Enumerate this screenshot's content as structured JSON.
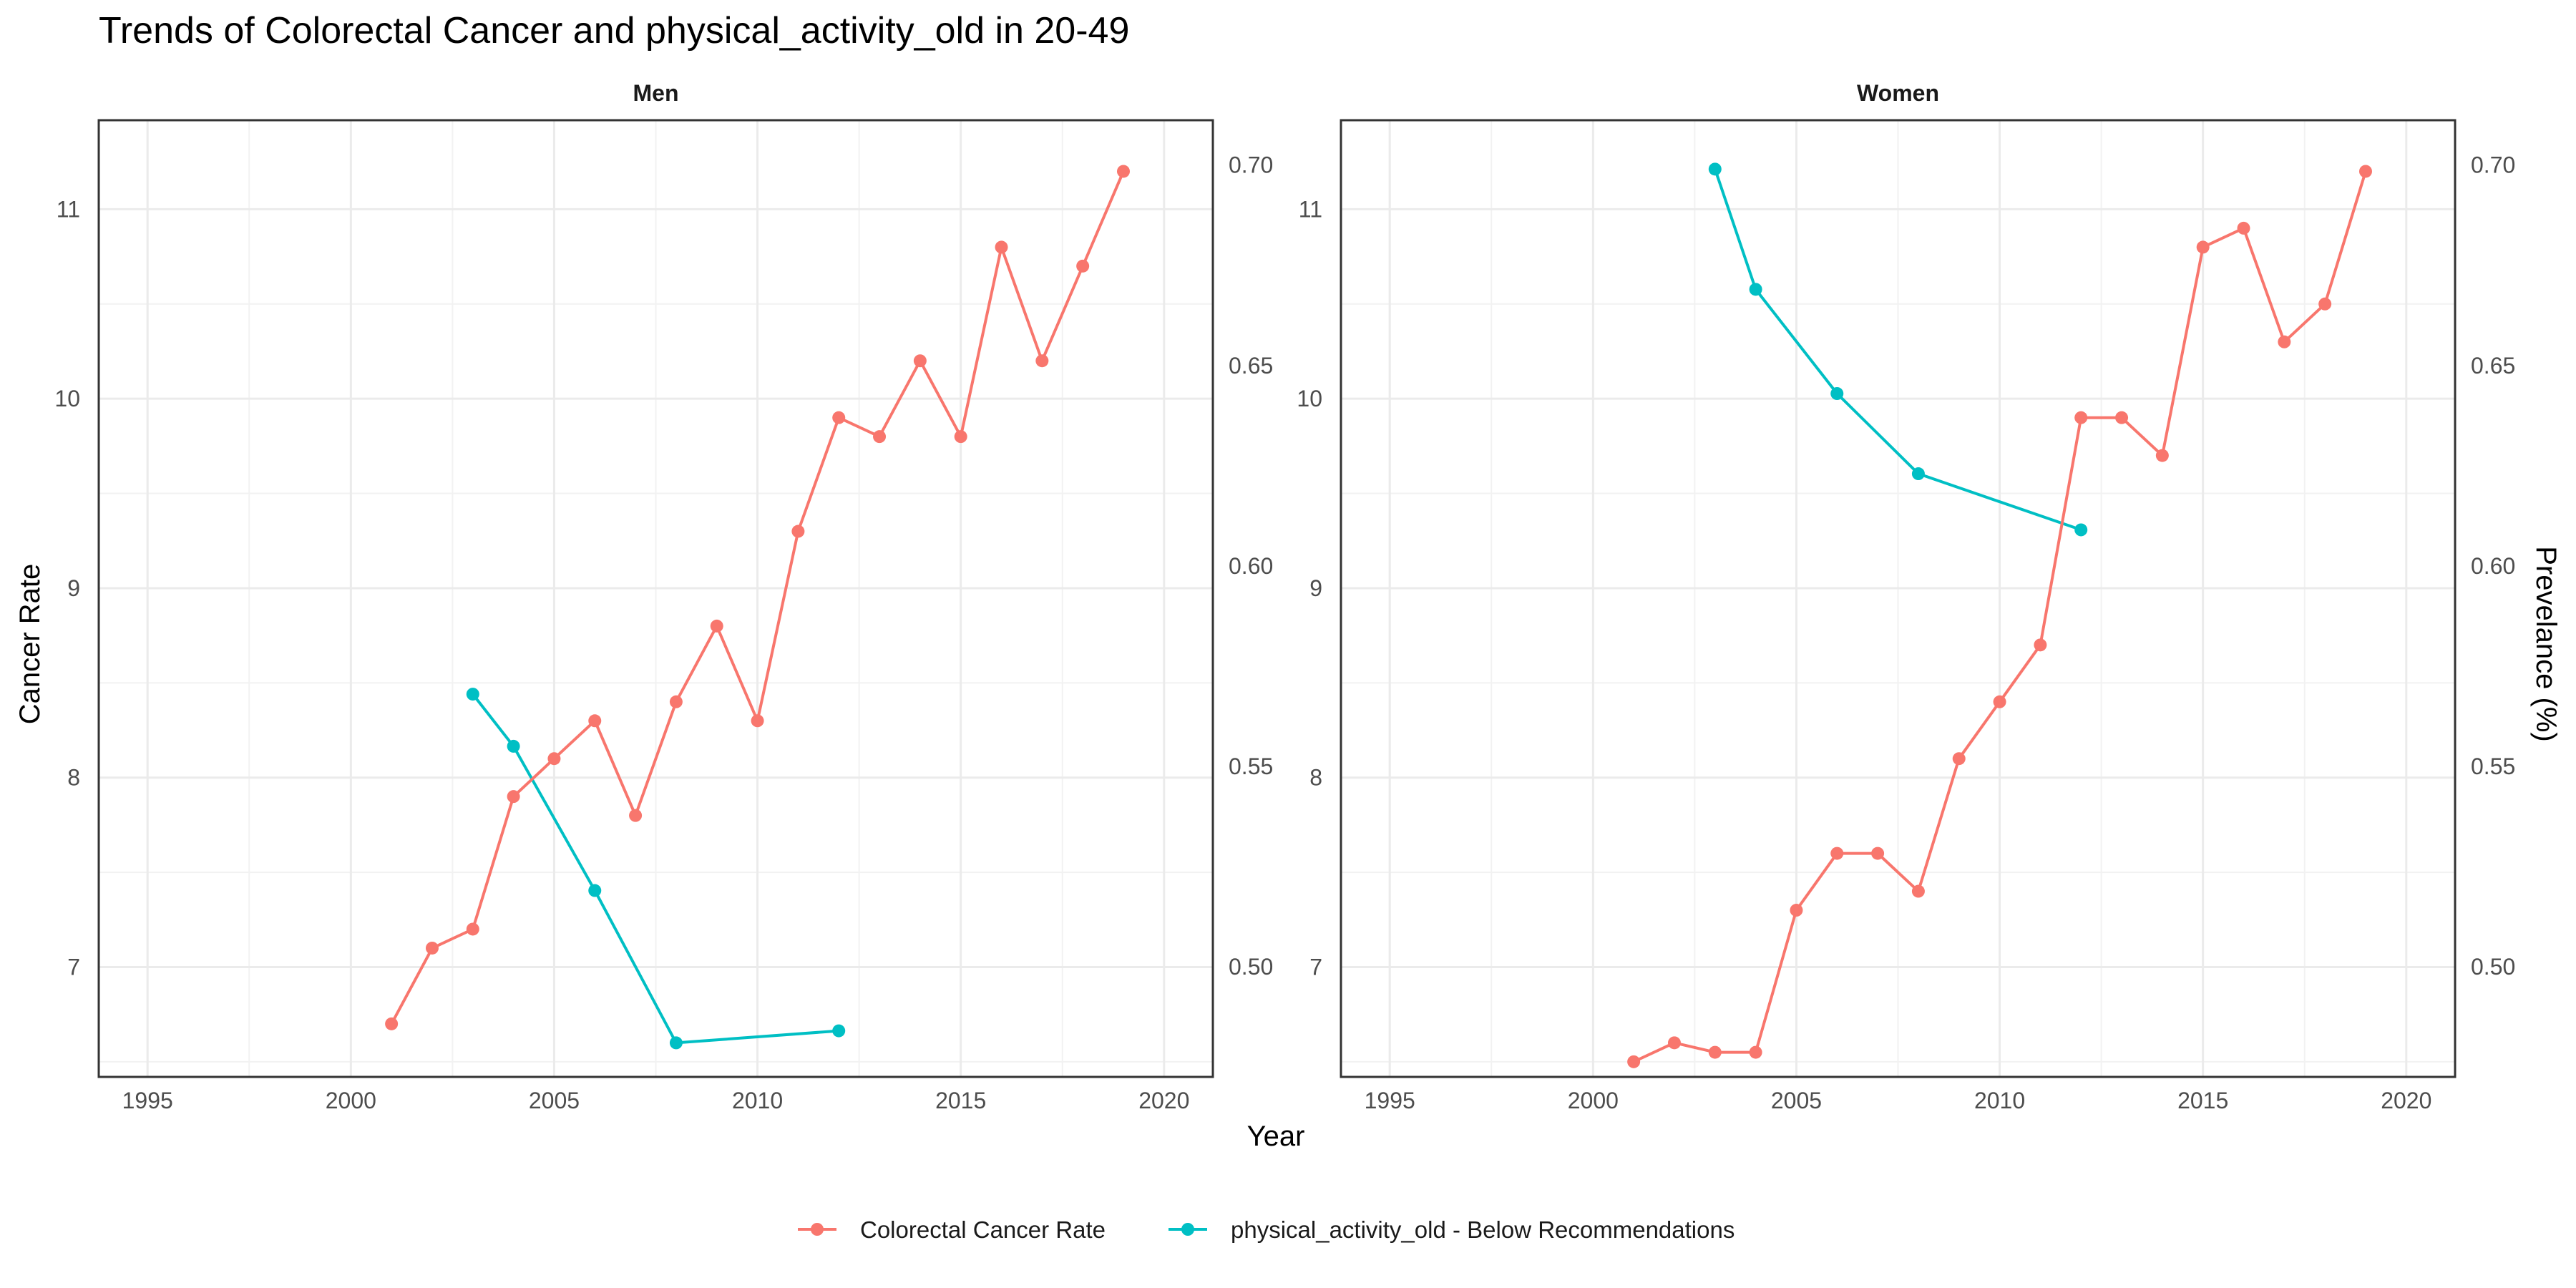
{
  "chart_data": {
    "type": "line",
    "title": "Trends of Colorectal Cancer and physical_activity_old in 20-49",
    "xlabel": "Year",
    "ylabel_left": "Cancer Rate",
    "ylabel_right": "Prevelance (%)",
    "x_ticks": [
      1995,
      2000,
      2005,
      2010,
      2015,
      2020
    ],
    "xlim": [
      1993.8,
      2021.2
    ],
    "y_left_ticks": [
      7,
      8,
      9,
      10,
      11
    ],
    "y_left_tick_labels": [
      "7",
      "8",
      "9",
      "10",
      "11"
    ],
    "y_right_ticks": [
      0.5,
      0.55,
      0.6,
      0.65,
      0.7
    ],
    "y_right_tick_labels": [
      "0.50",
      "0.55",
      "0.60",
      "0.65",
      "0.70"
    ],
    "y_left_range": [
      6.42,
      11.47
    ],
    "y_right_range": [
      0.4725,
      0.7112
    ],
    "grid": true,
    "legend": {
      "position": "bottom",
      "entries": [
        {
          "label": "Colorectal Cancer Rate",
          "color": "#F8766D"
        },
        {
          "label": "physical_activity_old - Below Recommendations",
          "color": "#00BFC4"
        }
      ]
    },
    "panels": [
      {
        "name": "Men",
        "cancer": {
          "x": [
            2001,
            2002,
            2003,
            2004,
            2005,
            2006,
            2007,
            2008,
            2009,
            2010,
            2011,
            2012,
            2013,
            2014,
            2015,
            2016,
            2017,
            2018,
            2019
          ],
          "y": [
            6.7,
            7.1,
            7.2,
            7.9,
            8.1,
            8.3,
            7.8,
            8.4,
            8.8,
            8.3,
            9.3,
            9.9,
            9.8,
            10.2,
            9.8,
            10.8,
            10.2,
            10.7,
            11.2
          ]
        },
        "activity": {
          "x": [
            2003,
            2004,
            2006,
            2008,
            2012
          ],
          "y": [
            0.568,
            0.555,
            0.519,
            0.481,
            0.484
          ]
        }
      },
      {
        "name": "Women",
        "cancer": {
          "x": [
            2001,
            2002,
            2003,
            2004,
            2005,
            2006,
            2007,
            2008,
            2009,
            2010,
            2011,
            2012,
            2013,
            2014,
            2015,
            2016,
            2017,
            2018,
            2019
          ],
          "y": [
            6.5,
            6.6,
            6.55,
            6.55,
            7.3,
            7.6,
            7.6,
            7.4,
            8.1,
            8.4,
            8.7,
            9.9,
            9.9,
            9.7,
            10.8,
            10.9,
            10.3,
            10.5,
            11.2
          ]
        },
        "activity": {
          "x": [
            2003,
            2004,
            2006,
            2008,
            2012
          ],
          "y": [
            0.699,
            0.669,
            0.643,
            0.623,
            0.609
          ]
        }
      }
    ]
  }
}
